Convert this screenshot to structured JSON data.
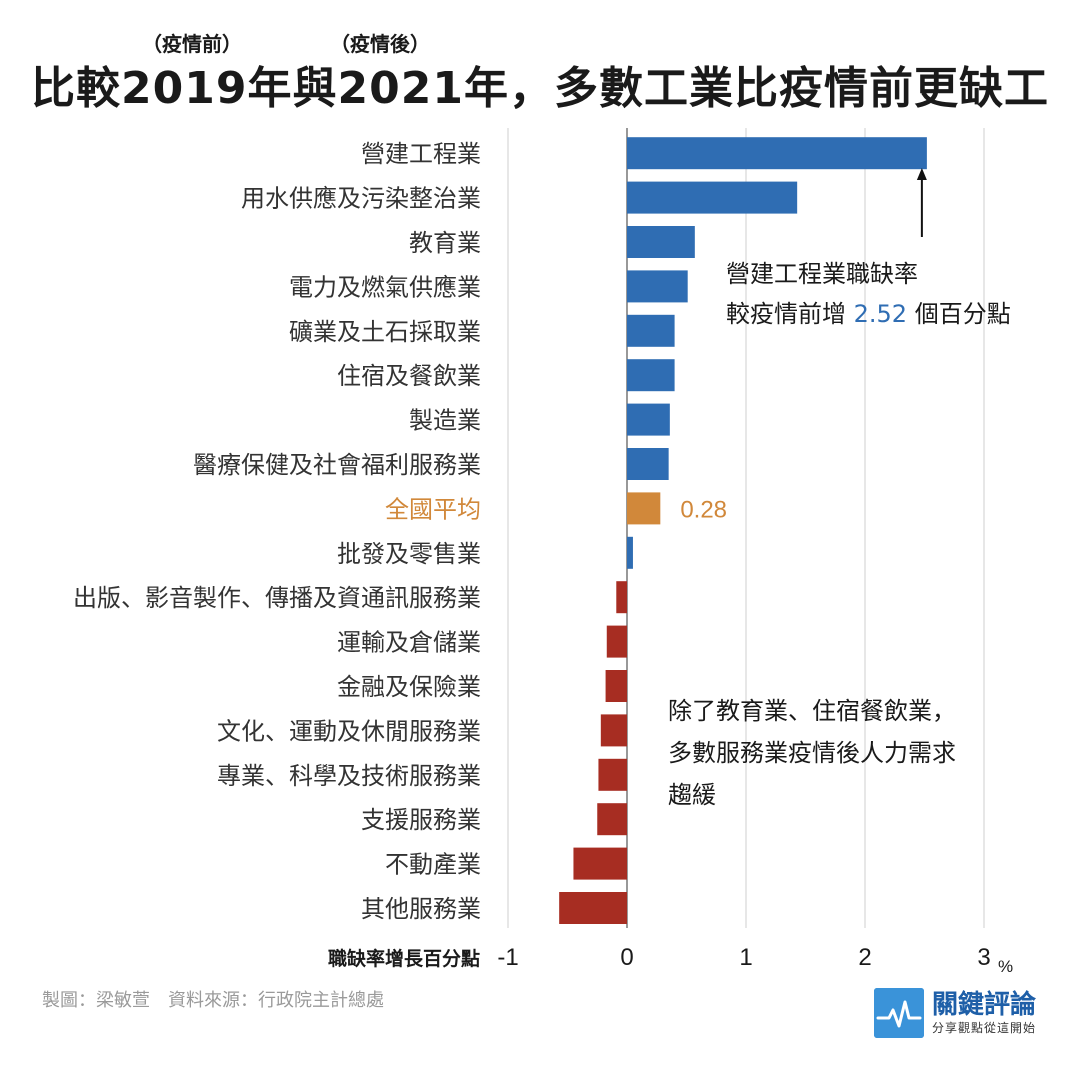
{
  "header": {
    "title": "比較2019年與2021年，多數工業比疫情前更缺工",
    "note_left": "（疫情前）",
    "note_right": "（疫情後）"
  },
  "colors": {
    "positive": "#2f6db3",
    "negative": "#a72d22",
    "average": "#d1883a",
    "grid": "#cfcfcf"
  },
  "chart_data": {
    "type": "bar",
    "orientation": "horizontal",
    "categories": [
      "營建工程業",
      "用水供應及污染整治業",
      "教育業",
      "電力及燃氣供應業",
      "礦業及土石採取業",
      "住宿及餐飲業",
      "製造業",
      "醫療保健及社會福利服務業",
      "全國平均",
      "批發及零售業",
      "出版、影音製作、傳播及資通訊服務業",
      "運輸及倉儲業",
      "金融及保險業",
      "文化、運動及休閒服務業",
      "專業、科學及技術服務業",
      "支援服務業",
      "不動產業",
      "其他服務業"
    ],
    "values": [
      2.52,
      1.43,
      0.57,
      0.51,
      0.4,
      0.4,
      0.36,
      0.35,
      0.28,
      0.05,
      -0.09,
      -0.17,
      -0.18,
      -0.22,
      -0.24,
      -0.25,
      -0.45,
      -0.57
    ],
    "highlight_category": "全國平均",
    "highlight_label": "0.28",
    "xlabel": "職缺率增長百分點",
    "x_unit": "%",
    "xlim": [
      -1,
      3
    ],
    "xticks": [
      "-1",
      "0",
      "1",
      "2",
      "3"
    ],
    "grid": true
  },
  "annotations": {
    "top_line1": "營建工程業職缺率",
    "top_line2_pre": "較疫情前增 ",
    "top_line2_value": "2.52",
    "top_line2_post": " 個百分點",
    "bottom_line1": "除了教育業、住宿餐飲業，",
    "bottom_line2": "多數服務業疫情後人力需求",
    "bottom_line3": "趨緩"
  },
  "footer": {
    "credit": "製圖：梁敏萱　資料來源：行政院主計總處",
    "brand_name": "關鍵評論",
    "brand_slogan": "分享觀點從這開始"
  }
}
